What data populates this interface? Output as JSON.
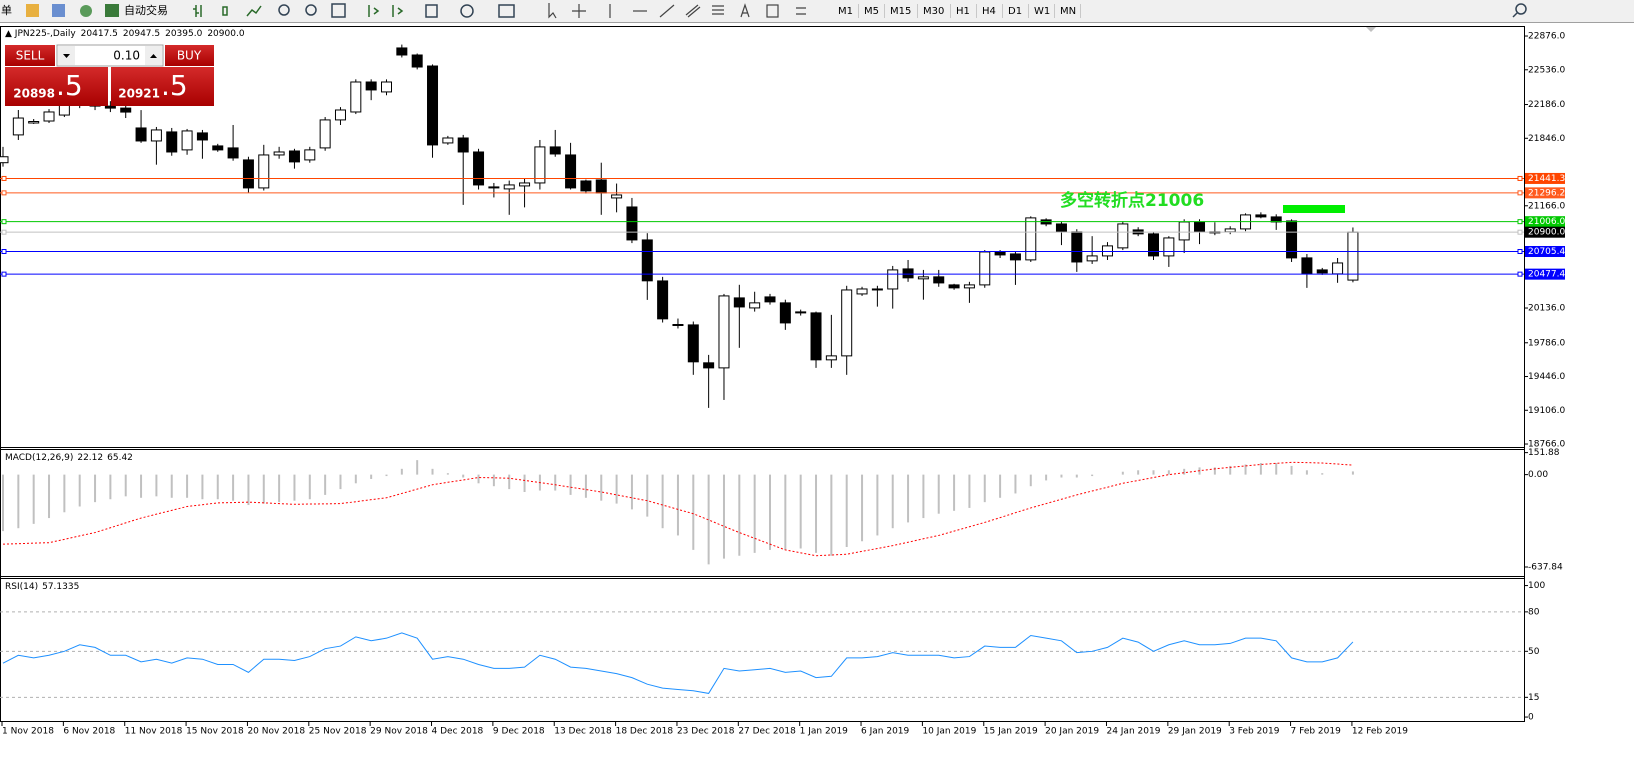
{
  "toolbar": {
    "menu": "单",
    "autotrade": "自动交易",
    "timeframes": [
      "M1",
      "M5",
      "M15",
      "M30",
      "H1",
      "H4",
      "D1",
      "W1",
      "MN"
    ]
  },
  "trade_panel": {
    "sell": "SELL",
    "buy": "BUY",
    "lot": "0.10",
    "sell_price": {
      "main": "20898",
      "frac": ".5"
    },
    "buy_price": {
      "main": "20921",
      "frac": ".5"
    }
  },
  "chart_data": [
    {
      "type": "candlestick",
      "title": "JPN225-,Daily",
      "ohlc_text": [
        "20417.5",
        "20947.5",
        "20395.0",
        "20900.0"
      ],
      "annotation": "多空转折点21006",
      "categories": [
        "1 Nov 2018",
        null,
        null,
        null,
        "6 Nov 2018",
        null,
        null,
        null,
        "11 Nov 2018",
        null,
        null,
        null,
        "15 Nov 2018",
        null,
        null,
        null,
        "20 Nov 2018",
        null,
        null,
        null,
        "25 Nov 2018",
        null,
        null,
        null,
        "29 Nov 2018",
        null,
        null,
        null,
        "4 Dec 2018",
        null,
        null,
        null,
        "9 Dec 2018",
        null,
        null,
        null,
        "13 Dec 2018",
        null,
        null,
        null,
        "18 Dec 2018",
        null,
        null,
        null,
        "23 Dec 2018",
        null,
        null,
        null,
        "27 Dec 2018",
        null,
        null,
        null,
        "1 Jan 2019",
        null,
        null,
        null,
        "6 Jan 2019",
        null,
        null,
        null,
        "10 Jan 2019",
        null,
        null,
        null,
        "15 Jan 2019",
        null,
        null,
        null,
        "20 Jan 2019",
        null,
        null,
        null,
        "24 Jan 2019",
        null,
        null,
        null,
        "29 Jan 2019",
        null,
        null,
        null,
        "3 Feb 2019",
        null,
        null,
        null,
        "7 Feb 2019",
        null,
        null,
        null,
        "12 Feb 2019"
      ],
      "open": [
        21600,
        21880,
        22000,
        22020,
        22080,
        22180,
        22200,
        22170,
        22150,
        21950,
        21819,
        21910,
        21729,
        21900,
        21769,
        21749,
        21628,
        21346,
        21678,
        21718,
        21628,
        21749,
        22031,
        22111,
        22413,
        22313,
        22756,
        22685,
        22574,
        21799,
        21849,
        21708,
        21346,
        21336,
        21366,
        21396,
        21759,
        21678,
        21416,
        21426,
        21245,
        21154,
        20822,
        20409,
        19960,
        19966,
        19584,
        19533,
        20238,
        20137,
        20248,
        20188,
        20097,
        20087,
        19614,
        19654,
        20278,
        20318,
        20328,
        20530,
        20430,
        20450,
        20369,
        20339,
        20369,
        20701,
        20681,
        20621,
        21024,
        20983,
        20903,
        20611,
        20661,
        20742,
        20923,
        20883,
        20661,
        20822,
        21003,
        20893,
        20903,
        20933,
        21074,
        21054,
        21013,
        20641,
        20520,
        20480,
        20417.5
      ],
      "high": [
        21760,
        22131,
        22040,
        22140,
        22200,
        22250,
        22260,
        22220,
        22190,
        22130,
        21960,
        21950,
        21940,
        21930,
        21790,
        21980,
        21660,
        21780,
        21760,
        21740,
        21760,
        22060,
        22160,
        22440,
        22440,
        22440,
        22790,
        22700,
        22590,
        21870,
        21880,
        21740,
        21396,
        21420,
        21440,
        21829,
        21930,
        21800,
        21430,
        21600,
        21390,
        21245,
        20890,
        20450,
        20030,
        20000,
        19664,
        20278,
        20370,
        20300,
        20278,
        20220,
        20120,
        20100,
        20067,
        20360,
        20350,
        20360,
        20560,
        20620,
        20520,
        20520,
        20380,
        20400,
        20720,
        20720,
        20700,
        21060,
        21040,
        21010,
        20930,
        20860,
        20800,
        21010,
        20950,
        20900,
        20860,
        21030,
        21030,
        21000,
        20960,
        21090,
        21100,
        21080,
        21030,
        20680,
        20540,
        20640,
        20947.5
      ],
      "low": [
        21560,
        21829,
        21990,
        22000,
        22060,
        22150,
        22130,
        22110,
        22050,
        21800,
        21580,
        21670,
        21680,
        21640,
        21710,
        21620,
        21295,
        21320,
        21640,
        21540,
        21600,
        21720,
        21980,
        22090,
        22230,
        22280,
        22660,
        22540,
        21650,
        21780,
        21175,
        21330,
        21250,
        21075,
        21150,
        21330,
        21660,
        21330,
        21290,
        21075,
        21100,
        20790,
        20218,
        19990,
        19930,
        19463,
        19130,
        19210,
        19735,
        20100,
        20170,
        19916,
        20060,
        19533,
        19533,
        19463,
        20258,
        20150,
        20130,
        20400,
        20220,
        20350,
        20320,
        20188,
        20340,
        20640,
        20369,
        20600,
        20960,
        20770,
        20500,
        20580,
        20620,
        20720,
        20860,
        20620,
        20550,
        20690,
        20780,
        20870,
        20880,
        20910,
        21040,
        20923,
        20600,
        20339,
        20470,
        20390,
        20395
      ],
      "close": [
        21660,
        22050,
        22015,
        22111,
        22180,
        22200,
        22170,
        22150,
        22110,
        21819,
        21930,
        21708,
        21920,
        21829,
        21729,
        21648,
        21346,
        21678,
        21708,
        21608,
        21729,
        22031,
        22131,
        22413,
        22333,
        22413,
        22685,
        22564,
        21779,
        21849,
        21708,
        21376,
        21356,
        21376,
        21396,
        21759,
        21688,
        21346,
        21316,
        21296,
        21275,
        20822,
        20410,
        20027,
        19970,
        19594,
        19533,
        20258,
        20147,
        20188,
        20198,
        19986,
        20087,
        19614,
        19654,
        20318,
        20328,
        20328,
        20520,
        20440,
        20450,
        20389,
        20339,
        20369,
        20701,
        20671,
        20621,
        21044,
        20983,
        20903,
        20600,
        20661,
        20762,
        20983,
        20883,
        20661,
        20842,
        21003,
        20903,
        20903,
        20933,
        21074,
        21054,
        21003,
        20641,
        20480,
        20490,
        20590,
        20900
      ],
      "up_color": "#ffffff",
      "down_color": "#000000",
      "ylim": [
        18736,
        22967
      ],
      "yticks": [
        {
          "value": 22876,
          "label": "22876.0"
        },
        {
          "value": 22536,
          "label": "22536.0"
        },
        {
          "value": 22186,
          "label": "22186.0"
        },
        {
          "value": 21846,
          "label": "21846.0"
        },
        {
          "value": 21166,
          "label": "21166.0"
        },
        {
          "value": 20136,
          "label": "20136.0"
        },
        {
          "value": 19786,
          "label": "19786.0"
        },
        {
          "value": 19446,
          "label": "19446.0"
        },
        {
          "value": 19106,
          "label": "19106.0"
        },
        {
          "value": 18766,
          "label": "18766.0"
        }
      ],
      "levels": [
        {
          "value": 21441.3,
          "color": "#ff4500",
          "box_color": "#ff4500"
        },
        {
          "value": 21296.2,
          "color": "#ff5a1e",
          "box_color": "#ff5a1e"
        },
        {
          "value": 21006.0,
          "label": "21006.0",
          "color": "#00c800",
          "box_color": "#00c800"
        },
        {
          "value": 20900.0,
          "label": "20900.0",
          "color": "#c0c0c0",
          "box_color": "#000000"
        },
        {
          "value": 20705.4,
          "color": "#0000ff",
          "box_color": "#0000ff"
        },
        {
          "value": 20477.4,
          "color": "#0000ff",
          "box_color": "#0000ff"
        }
      ]
    },
    {
      "type": "macd",
      "title": "MACD(12,26,9)",
      "series": [
        {
          "color": "#c0c0c0",
          "values": [
            -390,
            -370,
            -340,
            -300,
            -260,
            -220,
            -190,
            -170,
            -150,
            -160,
            -150,
            -160,
            -160,
            -170,
            -170,
            -180,
            -210,
            -200,
            -190,
            -180,
            -170,
            -140,
            -100,
            -60,
            -30,
            -10,
            40,
            100,
            40,
            10,
            -20,
            -60,
            -80,
            -100,
            -120,
            -110,
            -110,
            -140,
            -160,
            -180,
            -200,
            -240,
            -290,
            -370,
            -420,
            -520,
            -620,
            -580,
            -560,
            -540,
            -520,
            -520,
            -510,
            -540,
            -560,
            -500,
            -460,
            -420,
            -370,
            -330,
            -300,
            -270,
            -250,
            -230,
            -190,
            -160,
            -130,
            -80,
            -40,
            -20,
            -20,
            -10,
            0,
            20,
            30,
            30,
            30,
            40,
            50,
            50,
            60,
            70,
            80,
            80,
            60,
            30,
            10,
            0,
            22.12
          ]
        },
        {
          "color": "#ff0000",
          "values": [
            -480,
            -477,
            -473,
            -470,
            -447,
            -423,
            -400,
            -367,
            -333,
            -300,
            -273,
            -247,
            -220,
            -208,
            -195,
            -193,
            -190,
            -195,
            -200,
            -205,
            -203,
            -202,
            -200,
            -187,
            -173,
            -160,
            -130,
            -100,
            -70,
            -53,
            -37,
            -20,
            -22,
            -25,
            -40,
            -55,
            -70,
            -87,
            -103,
            -120,
            -140,
            -160,
            -180,
            -210,
            -240,
            -270,
            -313,
            -357,
            -400,
            -440,
            -480,
            -520,
            -540,
            -560,
            -555,
            -550,
            -530,
            -510,
            -490,
            -467,
            -443,
            -420,
            -390,
            -360,
            -330,
            -297,
            -263,
            -230,
            -200,
            -170,
            -140,
            -113,
            -87,
            -60,
            -40,
            -20,
            0,
            13,
            27,
            40,
            50,
            60,
            70,
            78,
            85,
            83,
            80,
            73,
            65.42
          ]
        }
      ],
      "ylim": [
        -700,
        170
      ],
      "yticks": [
        151.88,
        {
          "value": 0,
          "label": "0.00"
        },
        -637.84
      ]
    },
    {
      "type": "line",
      "title": "RSI(14)",
      "color": "#1e90ff",
      "values": [
        41,
        47,
        45,
        47,
        50,
        55,
        53,
        47,
        47,
        42,
        44,
        41,
        45,
        44,
        40,
        40,
        34,
        44,
        44,
        43,
        46,
        52,
        54,
        61,
        58,
        60,
        64,
        60,
        44,
        46,
        44,
        40,
        37,
        37,
        38,
        47,
        44,
        38,
        37,
        35,
        33,
        30,
        25,
        22,
        21,
        20,
        18,
        37,
        35,
        36,
        37,
        34,
        35,
        30,
        31,
        45,
        45,
        46,
        49,
        47,
        47,
        47,
        45,
        46,
        54,
        53,
        53,
        62,
        60,
        58,
        49,
        50,
        53,
        60,
        57,
        50,
        55,
        58,
        55,
        55,
        56,
        60,
        60,
        58,
        45,
        42,
        42,
        45,
        57.1335
      ],
      "ylim": [
        -3,
        105
      ],
      "yticks": [
        100,
        80,
        50,
        15,
        0
      ],
      "grid": true
    }
  ]
}
